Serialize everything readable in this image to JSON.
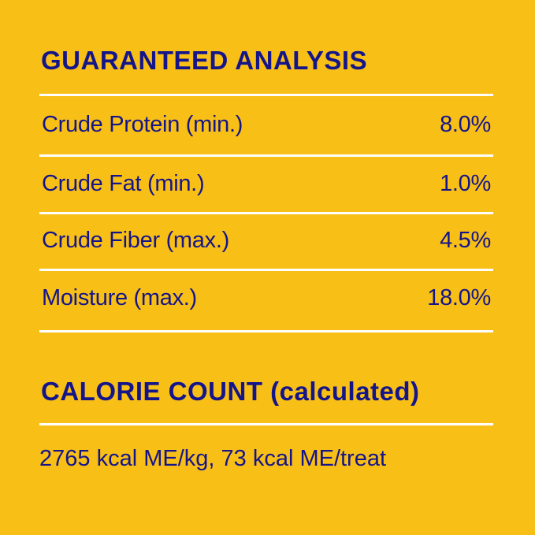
{
  "colors": {
    "background": "#F8BF17",
    "text": "#15158A",
    "divider": "#FFFFFF"
  },
  "guaranteed_analysis": {
    "title": "GUARANTEED ANALYSIS",
    "rows": [
      {
        "label": "Crude Protein (min.)",
        "value": "8.0%"
      },
      {
        "label": "Crude Fat (min.)",
        "value": "1.0%"
      },
      {
        "label": "Crude Fiber (max.)",
        "value": "4.5%"
      },
      {
        "label": "Moisture (max.)",
        "value": "18.0%"
      }
    ]
  },
  "calorie_count": {
    "title": "CALORIE COUNT (calculated)",
    "text": "2765 kcal ME/kg, 73 kcal ME/treat"
  }
}
